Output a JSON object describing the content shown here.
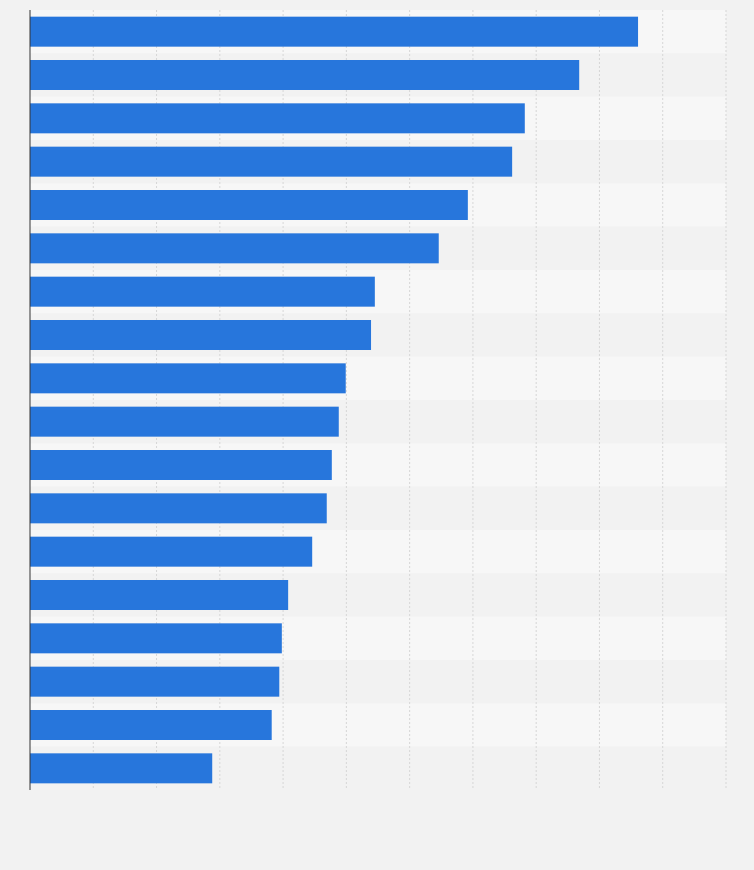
{
  "chart_data": {
    "type": "bar",
    "orientation": "horizontal",
    "values": [
      9.61,
      8.68,
      7.82,
      7.62,
      6.92,
      6.46,
      5.45,
      5.39,
      4.99,
      4.88,
      4.77,
      4.69,
      4.46,
      4.08,
      3.98,
      3.94,
      3.82,
      2.88
    ],
    "color": "#2776dc",
    "xlim": [
      0,
      11
    ],
    "xticks": [
      0,
      1,
      2,
      3,
      4,
      5,
      6,
      7,
      8,
      9,
      10,
      11
    ],
    "grid": true
  }
}
